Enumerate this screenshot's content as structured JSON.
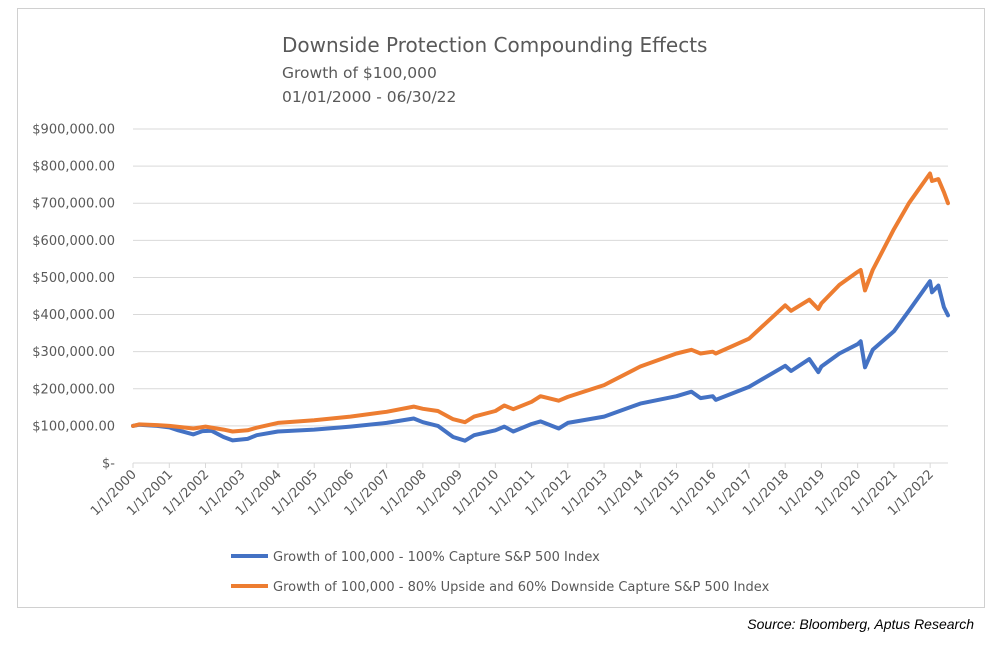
{
  "chart_data": {
    "type": "line",
    "title": "Downside Protection Compounding Effects",
    "subtitle_1": "Growth of $100,000",
    "subtitle_2": "01/01/2000 - 06/30/22",
    "y_ticks": [
      "$-",
      "$100,000.00",
      "$200,000.00",
      "$300,000.00",
      "$400,000.00",
      "$500,000.00",
      "$600,000.00",
      "$700,000.00",
      "$800,000.00",
      "$900,000.00"
    ],
    "ylim": [
      0,
      900000
    ],
    "x_ticks": [
      "1/1/2000",
      "1/1/2001",
      "1/1/2002",
      "1/1/2003",
      "1/1/2004",
      "1/1/2005",
      "1/1/2006",
      "1/1/2007",
      "1/1/2008",
      "1/1/2009",
      "1/1/2010",
      "1/1/2011",
      "1/1/2012",
      "1/1/2013",
      "1/1/2014",
      "1/1/2015",
      "1/1/2016",
      "1/1/2017",
      "1/1/2018",
      "1/1/2019",
      "1/1/2020",
      "1/1/2021",
      "1/1/2022"
    ],
    "xlim": [
      "2000-01-01",
      "2022-06-30"
    ],
    "grid": true,
    "legend_position": "bottom",
    "series": [
      {
        "name": "Growth of 100,000 - 100% Capture S&P 500 Index",
        "color": "#4472c4",
        "points": [
          [
            "2000-01-01",
            100000
          ],
          [
            "2000-03-01",
            103000
          ],
          [
            "2000-09-01",
            100000
          ],
          [
            "2001-01-01",
            96000
          ],
          [
            "2001-04-01",
            88000
          ],
          [
            "2001-09-01",
            77000
          ],
          [
            "2001-12-01",
            86000
          ],
          [
            "2002-03-01",
            87000
          ],
          [
            "2002-07-01",
            70000
          ],
          [
            "2002-10-01",
            61000
          ],
          [
            "2003-03-01",
            65000
          ],
          [
            "2003-06-01",
            75000
          ],
          [
            "2004-01-01",
            85000
          ],
          [
            "2005-01-01",
            90000
          ],
          [
            "2006-01-01",
            98000
          ],
          [
            "2007-01-01",
            108000
          ],
          [
            "2007-10-01",
            120000
          ],
          [
            "2008-01-01",
            110000
          ],
          [
            "2008-06-01",
            100000
          ],
          [
            "2008-11-01",
            70000
          ],
          [
            "2009-03-01",
            60000
          ],
          [
            "2009-06-01",
            75000
          ],
          [
            "2010-01-01",
            88000
          ],
          [
            "2010-04-01",
            98000
          ],
          [
            "2010-07-01",
            85000
          ],
          [
            "2011-01-01",
            105000
          ],
          [
            "2011-04-01",
            112000
          ],
          [
            "2011-10-01",
            93000
          ],
          [
            "2012-01-01",
            108000
          ],
          [
            "2013-01-01",
            125000
          ],
          [
            "2014-01-01",
            160000
          ],
          [
            "2015-01-01",
            180000
          ],
          [
            "2015-06-01",
            192000
          ],
          [
            "2015-09-01",
            175000
          ],
          [
            "2016-01-01",
            180000
          ],
          [
            "2016-02-01",
            170000
          ],
          [
            "2017-01-01",
            205000
          ],
          [
            "2018-01-01",
            262000
          ],
          [
            "2018-03-01",
            248000
          ],
          [
            "2018-09-01",
            280000
          ],
          [
            "2018-12-01",
            245000
          ],
          [
            "2019-01-01",
            260000
          ],
          [
            "2019-07-01",
            295000
          ],
          [
            "2020-01-01",
            320000
          ],
          [
            "2020-02-01",
            328000
          ],
          [
            "2020-03-15",
            258000
          ],
          [
            "2020-06-01",
            305000
          ],
          [
            "2021-01-01",
            355000
          ],
          [
            "2021-06-01",
            410000
          ],
          [
            "2021-12-31",
            490000
          ],
          [
            "2022-01-20",
            460000
          ],
          [
            "2022-03-25",
            478000
          ],
          [
            "2022-05-20",
            420000
          ],
          [
            "2022-06-30",
            398000
          ]
        ]
      },
      {
        "name": "Growth of 100,000 - 80% Upside and 60% Downside Capture S&P 500 Index",
        "color": "#ed7d31",
        "points": [
          [
            "2000-01-01",
            100000
          ],
          [
            "2000-03-01",
            104000
          ],
          [
            "2000-09-01",
            102000
          ],
          [
            "2001-01-01",
            100000
          ],
          [
            "2001-09-01",
            93000
          ],
          [
            "2002-01-01",
            98000
          ],
          [
            "2002-07-01",
            90000
          ],
          [
            "2002-10-01",
            85000
          ],
          [
            "2003-03-01",
            88000
          ],
          [
            "2003-06-01",
            95000
          ],
          [
            "2004-01-01",
            108000
          ],
          [
            "2005-01-01",
            115000
          ],
          [
            "2006-01-01",
            125000
          ],
          [
            "2007-01-01",
            138000
          ],
          [
            "2007-10-01",
            152000
          ],
          [
            "2008-01-01",
            146000
          ],
          [
            "2008-06-01",
            140000
          ],
          [
            "2008-11-01",
            118000
          ],
          [
            "2009-03-01",
            110000
          ],
          [
            "2009-06-01",
            125000
          ],
          [
            "2010-01-01",
            140000
          ],
          [
            "2010-04-01",
            155000
          ],
          [
            "2010-07-01",
            145000
          ],
          [
            "2011-01-01",
            165000
          ],
          [
            "2011-04-01",
            180000
          ],
          [
            "2011-10-01",
            168000
          ],
          [
            "2012-01-01",
            178000
          ],
          [
            "2013-01-01",
            210000
          ],
          [
            "2014-01-01",
            260000
          ],
          [
            "2015-01-01",
            295000
          ],
          [
            "2015-06-01",
            305000
          ],
          [
            "2015-09-01",
            295000
          ],
          [
            "2016-01-01",
            300000
          ],
          [
            "2016-02-01",
            295000
          ],
          [
            "2017-01-01",
            335000
          ],
          [
            "2018-01-01",
            425000
          ],
          [
            "2018-03-01",
            410000
          ],
          [
            "2018-09-01",
            440000
          ],
          [
            "2018-12-01",
            415000
          ],
          [
            "2019-01-01",
            430000
          ],
          [
            "2019-07-01",
            480000
          ],
          [
            "2020-01-01",
            515000
          ],
          [
            "2020-02-01",
            520000
          ],
          [
            "2020-03-15",
            465000
          ],
          [
            "2020-06-01",
            520000
          ],
          [
            "2021-01-01",
            630000
          ],
          [
            "2021-06-01",
            700000
          ],
          [
            "2021-12-31",
            780000
          ],
          [
            "2022-01-20",
            760000
          ],
          [
            "2022-03-25",
            765000
          ],
          [
            "2022-05-20",
            730000
          ],
          [
            "2022-06-30",
            700000
          ]
        ]
      }
    ],
    "source": "Source: Bloomberg, Aptus Research"
  }
}
